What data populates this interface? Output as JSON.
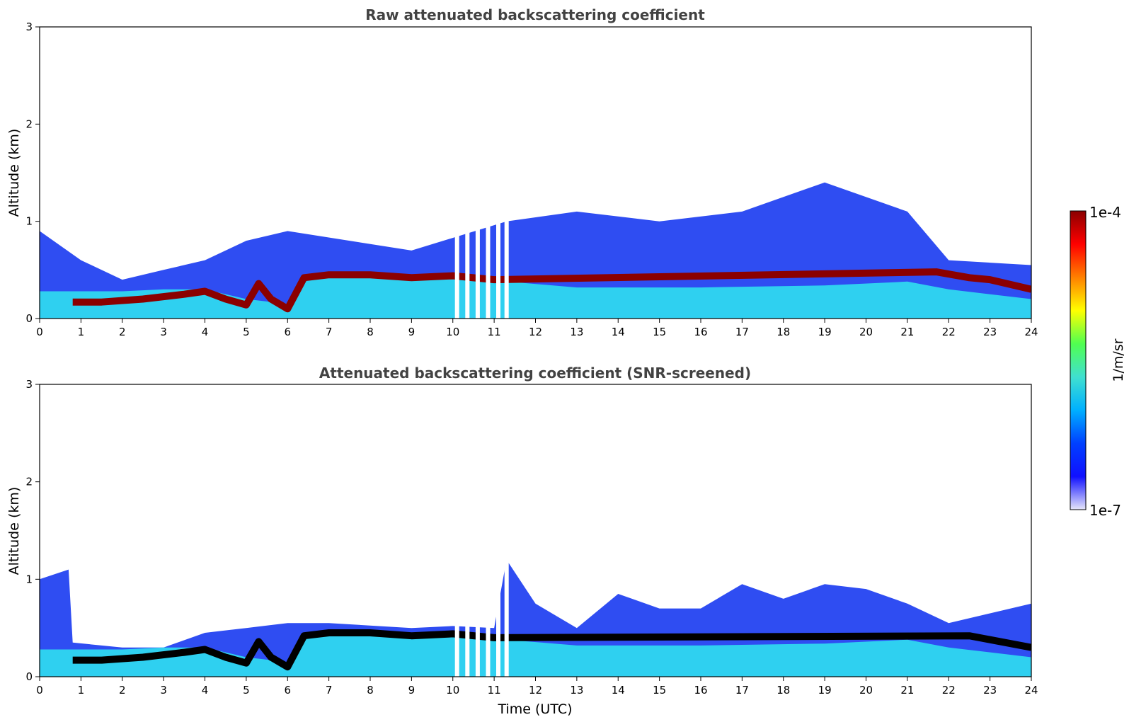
{
  "chart_data": [
    {
      "type": "heatmap",
      "title": "Raw attenuated backscattering coefficient",
      "xlabel": "",
      "ylabel": "Altitude (km)",
      "xlim": [
        0,
        24
      ],
      "ylim": [
        0,
        3
      ],
      "xticks": [
        "0",
        "1",
        "2",
        "3",
        "4",
        "5",
        "6",
        "7",
        "8",
        "9",
        "10",
        "11",
        "12",
        "13",
        "14",
        "15",
        "16",
        "17",
        "18",
        "19",
        "20",
        "21",
        "22",
        "23",
        "24"
      ],
      "yticks": [
        "0",
        "1",
        "2",
        "3"
      ],
      "color_scale": "log",
      "layers": [
        {
          "name": "surface-layer",
          "color": "#2fd0f0",
          "points": [
            [
              0,
              0.28
            ],
            [
              0.8,
              0.28
            ],
            [
              2,
              0.28
            ],
            [
              3,
              0.3
            ],
            [
              4,
              0.3
            ],
            [
              5,
              0.2
            ],
            [
              6,
              0.15
            ],
            [
              6.5,
              0.42
            ],
            [
              8,
              0.42
            ],
            [
              10,
              0.42
            ],
            [
              11.3,
              0.38
            ],
            [
              13,
              0.32
            ],
            [
              16,
              0.32
            ],
            [
              19,
              0.34
            ],
            [
              21,
              0.38
            ],
            [
              22,
              0.3
            ],
            [
              24,
              0.2
            ]
          ]
        },
        {
          "name": "aerosol-top",
          "color": "#0a2ef0",
          "points": [
            [
              0,
              0.9
            ],
            [
              1,
              0.6
            ],
            [
              2,
              0.4
            ],
            [
              3,
              0.5
            ],
            [
              4,
              0.6
            ],
            [
              5,
              0.8
            ],
            [
              6,
              0.9
            ],
            [
              9,
              0.7
            ],
            [
              11.3,
              1.0
            ],
            [
              13,
              1.1
            ],
            [
              15,
              1.0
            ],
            [
              17,
              1.1
            ],
            [
              19,
              1.4
            ],
            [
              21,
              1.1
            ],
            [
              22,
              0.6
            ],
            [
              24,
              0.55
            ]
          ]
        },
        {
          "name": "strong-layer",
          "color": "#8b0000",
          "points": [
            [
              0.8,
              0.17
            ],
            [
              1.5,
              0.17
            ],
            [
              2.5,
              0.2
            ],
            [
              3.5,
              0.25
            ],
            [
              4,
              0.28
            ],
            [
              4.5,
              0.2
            ],
            [
              5,
              0.14
            ],
            [
              5.3,
              0.36
            ],
            [
              5.6,
              0.2
            ],
            [
              6,
              0.1
            ],
            [
              6.4,
              0.42
            ],
            [
              7,
              0.45
            ],
            [
              8,
              0.45
            ],
            [
              9,
              0.42
            ],
            [
              10,
              0.44
            ],
            [
              11,
              0.4
            ],
            [
              21.7,
              0.48
            ],
            [
              22.5,
              0.42
            ],
            [
              23,
              0.4
            ],
            [
              24,
              0.3
            ]
          ]
        }
      ],
      "dropout_hours": [
        10.05,
        10.3,
        10.55,
        10.8,
        11.05,
        11.25
      ]
    },
    {
      "type": "heatmap",
      "title": "Attenuated backscattering coefficient (SNR-screened)",
      "xlabel": "Time (UTC)",
      "ylabel": "Altitude (km)",
      "xlim": [
        0,
        24
      ],
      "ylim": [
        0,
        3
      ],
      "xticks": [
        "0",
        "1",
        "2",
        "3",
        "4",
        "5",
        "6",
        "7",
        "8",
        "9",
        "10",
        "11",
        "12",
        "13",
        "14",
        "15",
        "16",
        "17",
        "18",
        "19",
        "20",
        "21",
        "22",
        "23",
        "24"
      ],
      "yticks": [
        "0",
        "1",
        "2",
        "3"
      ],
      "color_scale": "log",
      "layers": [
        {
          "name": "surface-layer",
          "color": "#2fd0f0",
          "points": [
            [
              0,
              0.28
            ],
            [
              0.8,
              0.28
            ],
            [
              2,
              0.28
            ],
            [
              3,
              0.3
            ],
            [
              4,
              0.3
            ],
            [
              5,
              0.2
            ],
            [
              6,
              0.15
            ],
            [
              6.5,
              0.42
            ],
            [
              8,
              0.42
            ],
            [
              10,
              0.42
            ],
            [
              11.3,
              0.38
            ],
            [
              13,
              0.32
            ],
            [
              16,
              0.32
            ],
            [
              19,
              0.34
            ],
            [
              21,
              0.38
            ],
            [
              22,
              0.3
            ],
            [
              24,
              0.2
            ]
          ]
        },
        {
          "name": "aerosol-top",
          "color": "#0a2ef0",
          "points": [
            [
              0,
              1.0
            ],
            [
              0.7,
              1.1
            ],
            [
              0.8,
              0.35
            ],
            [
              2,
              0.3
            ],
            [
              3,
              0.3
            ],
            [
              4,
              0.45
            ],
            [
              5,
              0.5
            ],
            [
              6,
              0.55
            ],
            [
              7,
              0.55
            ],
            [
              9,
              0.5
            ],
            [
              10,
              0.52
            ],
            [
              11,
              0.5
            ],
            [
              11.3,
              1.2
            ],
            [
              12,
              0.75
            ],
            [
              13,
              0.5
            ],
            [
              14,
              0.85
            ],
            [
              15,
              0.7
            ],
            [
              16,
              0.7
            ],
            [
              17,
              0.95
            ],
            [
              18,
              0.8
            ],
            [
              19,
              0.95
            ],
            [
              20,
              0.9
            ],
            [
              21,
              0.75
            ],
            [
              22,
              0.55
            ],
            [
              23,
              0.65
            ],
            [
              24,
              0.75
            ]
          ]
        },
        {
          "name": "strong-layer",
          "color": "#000000",
          "points": [
            [
              0.8,
              0.17
            ],
            [
              1.5,
              0.17
            ],
            [
              2.5,
              0.2
            ],
            [
              3.5,
              0.25
            ],
            [
              4,
              0.28
            ],
            [
              4.5,
              0.2
            ],
            [
              5,
              0.14
            ],
            [
              5.3,
              0.36
            ],
            [
              5.6,
              0.2
            ],
            [
              6,
              0.1
            ],
            [
              6.4,
              0.42
            ],
            [
              7,
              0.45
            ],
            [
              8,
              0.45
            ],
            [
              9,
              0.42
            ],
            [
              10,
              0.44
            ],
            [
              11,
              0.4
            ],
            [
              22.5,
              0.42
            ],
            [
              23,
              0.38
            ],
            [
              24,
              0.3
            ]
          ]
        }
      ],
      "dropout_hours": [
        10.05,
        10.3,
        10.55,
        10.8,
        11.05,
        11.25
      ]
    }
  ],
  "colorbar": {
    "label": "1/m/sr",
    "max_label": "1e-4",
    "min_label": "1e-7",
    "colors": [
      "#e6e6fa",
      "#1010ff",
      "#0040ff",
      "#00b0ff",
      "#40e0d0",
      "#50ff50",
      "#ffff00",
      "#ff8000",
      "#ff0000",
      "#8b0000"
    ]
  }
}
